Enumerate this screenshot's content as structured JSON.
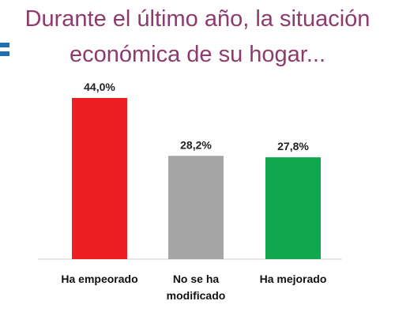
{
  "title": {
    "line1": "Durante el último año, la situación",
    "line2": "económica de su hogar..."
  },
  "colors": {
    "title": "#8e3a6f",
    "accent_mark": "#1f6fb5",
    "axis": "#cccccc"
  },
  "chart_data": {
    "type": "bar",
    "categories": [
      [
        "Ha empeorado"
      ],
      [
        "No se ha",
        "modificado"
      ],
      [
        "Ha mejorado"
      ]
    ],
    "values": [
      44.0,
      28.2,
      27.8
    ],
    "value_labels": [
      "44,0%",
      "28,2%",
      "27,8%"
    ],
    "colors": [
      "#ee1f23",
      "#a6a6a6",
      "#10a84f"
    ],
    "ylim": [
      0,
      44.0
    ],
    "grid": false,
    "legend": "none"
  }
}
